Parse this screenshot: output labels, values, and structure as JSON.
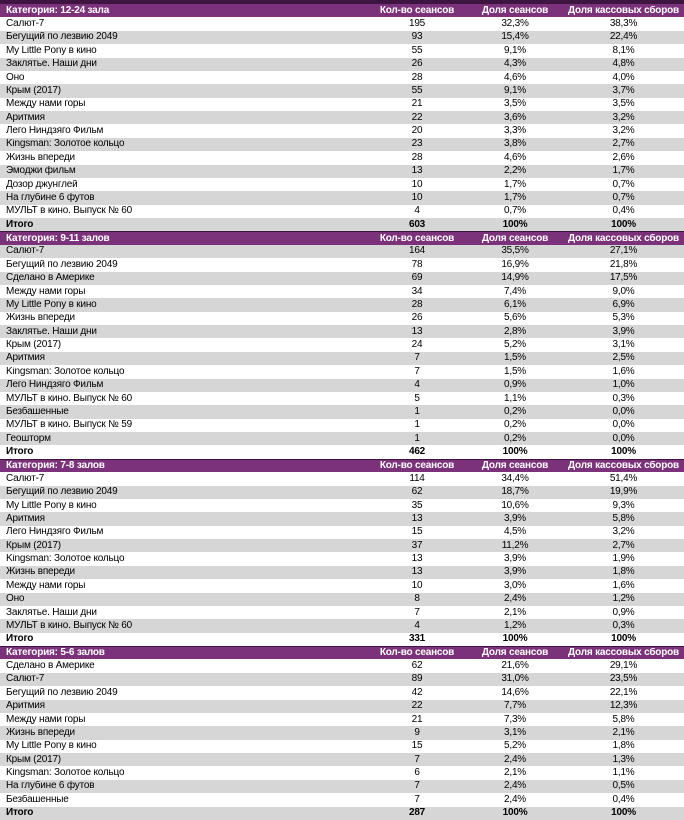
{
  "report": {
    "columns": {
      "sessions": "Кол-во сеансов",
      "share_sessions": "Доля сеансов",
      "share_box": "Доля кассовых сборов"
    },
    "total_label": "Итого",
    "colors": {
      "header_bg": "#7C327B",
      "header_top_border": "#3E1440",
      "band_gray": "#D6D6D6",
      "band_white": "#FFFFFF",
      "header_text": "#FFFFFF",
      "body_text": "#000000"
    },
    "tables": [
      {
        "category": "Категория: 12-24 зала",
        "rows": [
          {
            "title": "Салют-7",
            "sessions": "195",
            "share_sessions": "32,3%",
            "share_box": "38,3%"
          },
          {
            "title": "Бегущий по лезвию 2049",
            "sessions": "93",
            "share_sessions": "15,4%",
            "share_box": "22,4%"
          },
          {
            "title": "My Little Pony в кино",
            "sessions": "55",
            "share_sessions": "9,1%",
            "share_box": "8,1%"
          },
          {
            "title": "Заклятье. Наши дни",
            "sessions": "26",
            "share_sessions": "4,3%",
            "share_box": "4,8%"
          },
          {
            "title": "Оно",
            "sessions": "28",
            "share_sessions": "4,6%",
            "share_box": "4,0%"
          },
          {
            "title": "Крым (2017)",
            "sessions": "55",
            "share_sessions": "9,1%",
            "share_box": "3,7%"
          },
          {
            "title": "Между нами горы",
            "sessions": "21",
            "share_sessions": "3,5%",
            "share_box": "3,5%"
          },
          {
            "title": "Аритмия",
            "sessions": "22",
            "share_sessions": "3,6%",
            "share_box": "3,2%"
          },
          {
            "title": "Лего Ниндзяго Фильм",
            "sessions": "20",
            "share_sessions": "3,3%",
            "share_box": "3,2%"
          },
          {
            "title": "Kingsman: Золотое кольцо",
            "sessions": "23",
            "share_sessions": "3,8%",
            "share_box": "2,7%"
          },
          {
            "title": "Жизнь впереди",
            "sessions": "28",
            "share_sessions": "4,6%",
            "share_box": "2,6%"
          },
          {
            "title": "Эмоджи фильм",
            "sessions": "13",
            "share_sessions": "2,2%",
            "share_box": "1,7%"
          },
          {
            "title": "Дозор джунглей",
            "sessions": "10",
            "share_sessions": "1,7%",
            "share_box": "0,7%"
          },
          {
            "title": "На глубине 6 футов",
            "sessions": "10",
            "share_sessions": "1,7%",
            "share_box": "0,7%"
          },
          {
            "title": "МУЛЬТ в кино. Выпуск № 60",
            "sessions": "4",
            "share_sessions": "0,7%",
            "share_box": "0,4%"
          }
        ],
        "total": {
          "sessions": "603",
          "share_sessions": "100%",
          "share_box": "100%"
        }
      },
      {
        "category": "Категория: 9-11 залов",
        "rows": [
          {
            "title": "Салют-7",
            "sessions": "164",
            "share_sessions": "35,5%",
            "share_box": "27,1%"
          },
          {
            "title": "Бегущий по лезвию 2049",
            "sessions": "78",
            "share_sessions": "16,9%",
            "share_box": "21,8%"
          },
          {
            "title": "Сделано в Америке",
            "sessions": "69",
            "share_sessions": "14,9%",
            "share_box": "17,5%"
          },
          {
            "title": "Между нами горы",
            "sessions": "34",
            "share_sessions": "7,4%",
            "share_box": "9,0%"
          },
          {
            "title": "My Little Pony в кино",
            "sessions": "28",
            "share_sessions": "6,1%",
            "share_box": "6,9%"
          },
          {
            "title": "Жизнь впереди",
            "sessions": "26",
            "share_sessions": "5,6%",
            "share_box": "5,3%"
          },
          {
            "title": "Заклятье. Наши дни",
            "sessions": "13",
            "share_sessions": "2,8%",
            "share_box": "3,9%"
          },
          {
            "title": "Крым (2017)",
            "sessions": "24",
            "share_sessions": "5,2%",
            "share_box": "3,1%"
          },
          {
            "title": "Аритмия",
            "sessions": "7",
            "share_sessions": "1,5%",
            "share_box": "2,5%"
          },
          {
            "title": "Kingsman: Золотое кольцо",
            "sessions": "7",
            "share_sessions": "1,5%",
            "share_box": "1,6%"
          },
          {
            "title": "Лего Ниндзяго Фильм",
            "sessions": "4",
            "share_sessions": "0,9%",
            "share_box": "1,0%"
          },
          {
            "title": "МУЛЬТ в кино. Выпуск № 60",
            "sessions": "5",
            "share_sessions": "1,1%",
            "share_box": "0,3%"
          },
          {
            "title": "Безбашенные",
            "sessions": "1",
            "share_sessions": "0,2%",
            "share_box": "0,0%"
          },
          {
            "title": "МУЛЬТ в кино. Выпуск № 59",
            "sessions": "1",
            "share_sessions": "0,2%",
            "share_box": "0,0%"
          },
          {
            "title": "Геошторм",
            "sessions": "1",
            "share_sessions": "0,2%",
            "share_box": "0,0%"
          }
        ],
        "total": {
          "sessions": "462",
          "share_sessions": "100%",
          "share_box": "100%"
        }
      },
      {
        "category": "Категория: 7-8 залов",
        "rows": [
          {
            "title": "Салют-7",
            "sessions": "114",
            "share_sessions": "34,4%",
            "share_box": "51,4%"
          },
          {
            "title": "Бегущий по лезвию 2049",
            "sessions": "62",
            "share_sessions": "18,7%",
            "share_box": "19,9%"
          },
          {
            "title": "My Little Pony в кино",
            "sessions": "35",
            "share_sessions": "10,6%",
            "share_box": "9,3%"
          },
          {
            "title": "Аритмия",
            "sessions": "13",
            "share_sessions": "3,9%",
            "share_box": "5,8%"
          },
          {
            "title": "Лего Ниндзяго Фильм",
            "sessions": "15",
            "share_sessions": "4,5%",
            "share_box": "3,2%"
          },
          {
            "title": "Крым (2017)",
            "sessions": "37",
            "share_sessions": "11,2%",
            "share_box": "2,7%"
          },
          {
            "title": "Kingsman: Золотое кольцо",
            "sessions": "13",
            "share_sessions": "3,9%",
            "share_box": "1,9%"
          },
          {
            "title": "Жизнь впереди",
            "sessions": "13",
            "share_sessions": "3,9%",
            "share_box": "1,8%"
          },
          {
            "title": "Между нами горы",
            "sessions": "10",
            "share_sessions": "3,0%",
            "share_box": "1,6%"
          },
          {
            "title": "Оно",
            "sessions": "8",
            "share_sessions": "2,4%",
            "share_box": "1,2%"
          },
          {
            "title": "Заклятье. Наши дни",
            "sessions": "7",
            "share_sessions": "2,1%",
            "share_box": "0,9%"
          },
          {
            "title": "МУЛЬТ в кино. Выпуск № 60",
            "sessions": "4",
            "share_sessions": "1,2%",
            "share_box": "0,3%"
          }
        ],
        "total": {
          "sessions": "331",
          "share_sessions": "100%",
          "share_box": "100%"
        }
      },
      {
        "category": "Категория: 5-6 залов",
        "rows": [
          {
            "title": "Сделано в Америке",
            "sessions": "62",
            "share_sessions": "21,6%",
            "share_box": "29,1%"
          },
          {
            "title": "Салют-7",
            "sessions": "89",
            "share_sessions": "31,0%",
            "share_box": "23,5%"
          },
          {
            "title": "Бегущий по лезвию 2049",
            "sessions": "42",
            "share_sessions": "14,6%",
            "share_box": "22,1%"
          },
          {
            "title": "Аритмия",
            "sessions": "22",
            "share_sessions": "7,7%",
            "share_box": "12,3%"
          },
          {
            "title": "Между нами горы",
            "sessions": "21",
            "share_sessions": "7,3%",
            "share_box": "5,8%"
          },
          {
            "title": "Жизнь впереди",
            "sessions": "9",
            "share_sessions": "3,1%",
            "share_box": "2,1%"
          },
          {
            "title": "My Little Pony в кино",
            "sessions": "15",
            "share_sessions": "5,2%",
            "share_box": "1,8%"
          },
          {
            "title": "Крым (2017)",
            "sessions": "7",
            "share_sessions": "2,4%",
            "share_box": "1,3%"
          },
          {
            "title": "Kingsman: Золотое кольцо",
            "sessions": "6",
            "share_sessions": "2,1%",
            "share_box": "1,1%"
          },
          {
            "title": "На глубине 6 футов",
            "sessions": "7",
            "share_sessions": "2,4%",
            "share_box": "0,5%"
          },
          {
            "title": "Безбашенные",
            "sessions": "7",
            "share_sessions": "2,4%",
            "share_box": "0,4%"
          }
        ],
        "total": {
          "sessions": "287",
          "share_sessions": "100%",
          "share_box": "100%"
        }
      }
    ]
  }
}
